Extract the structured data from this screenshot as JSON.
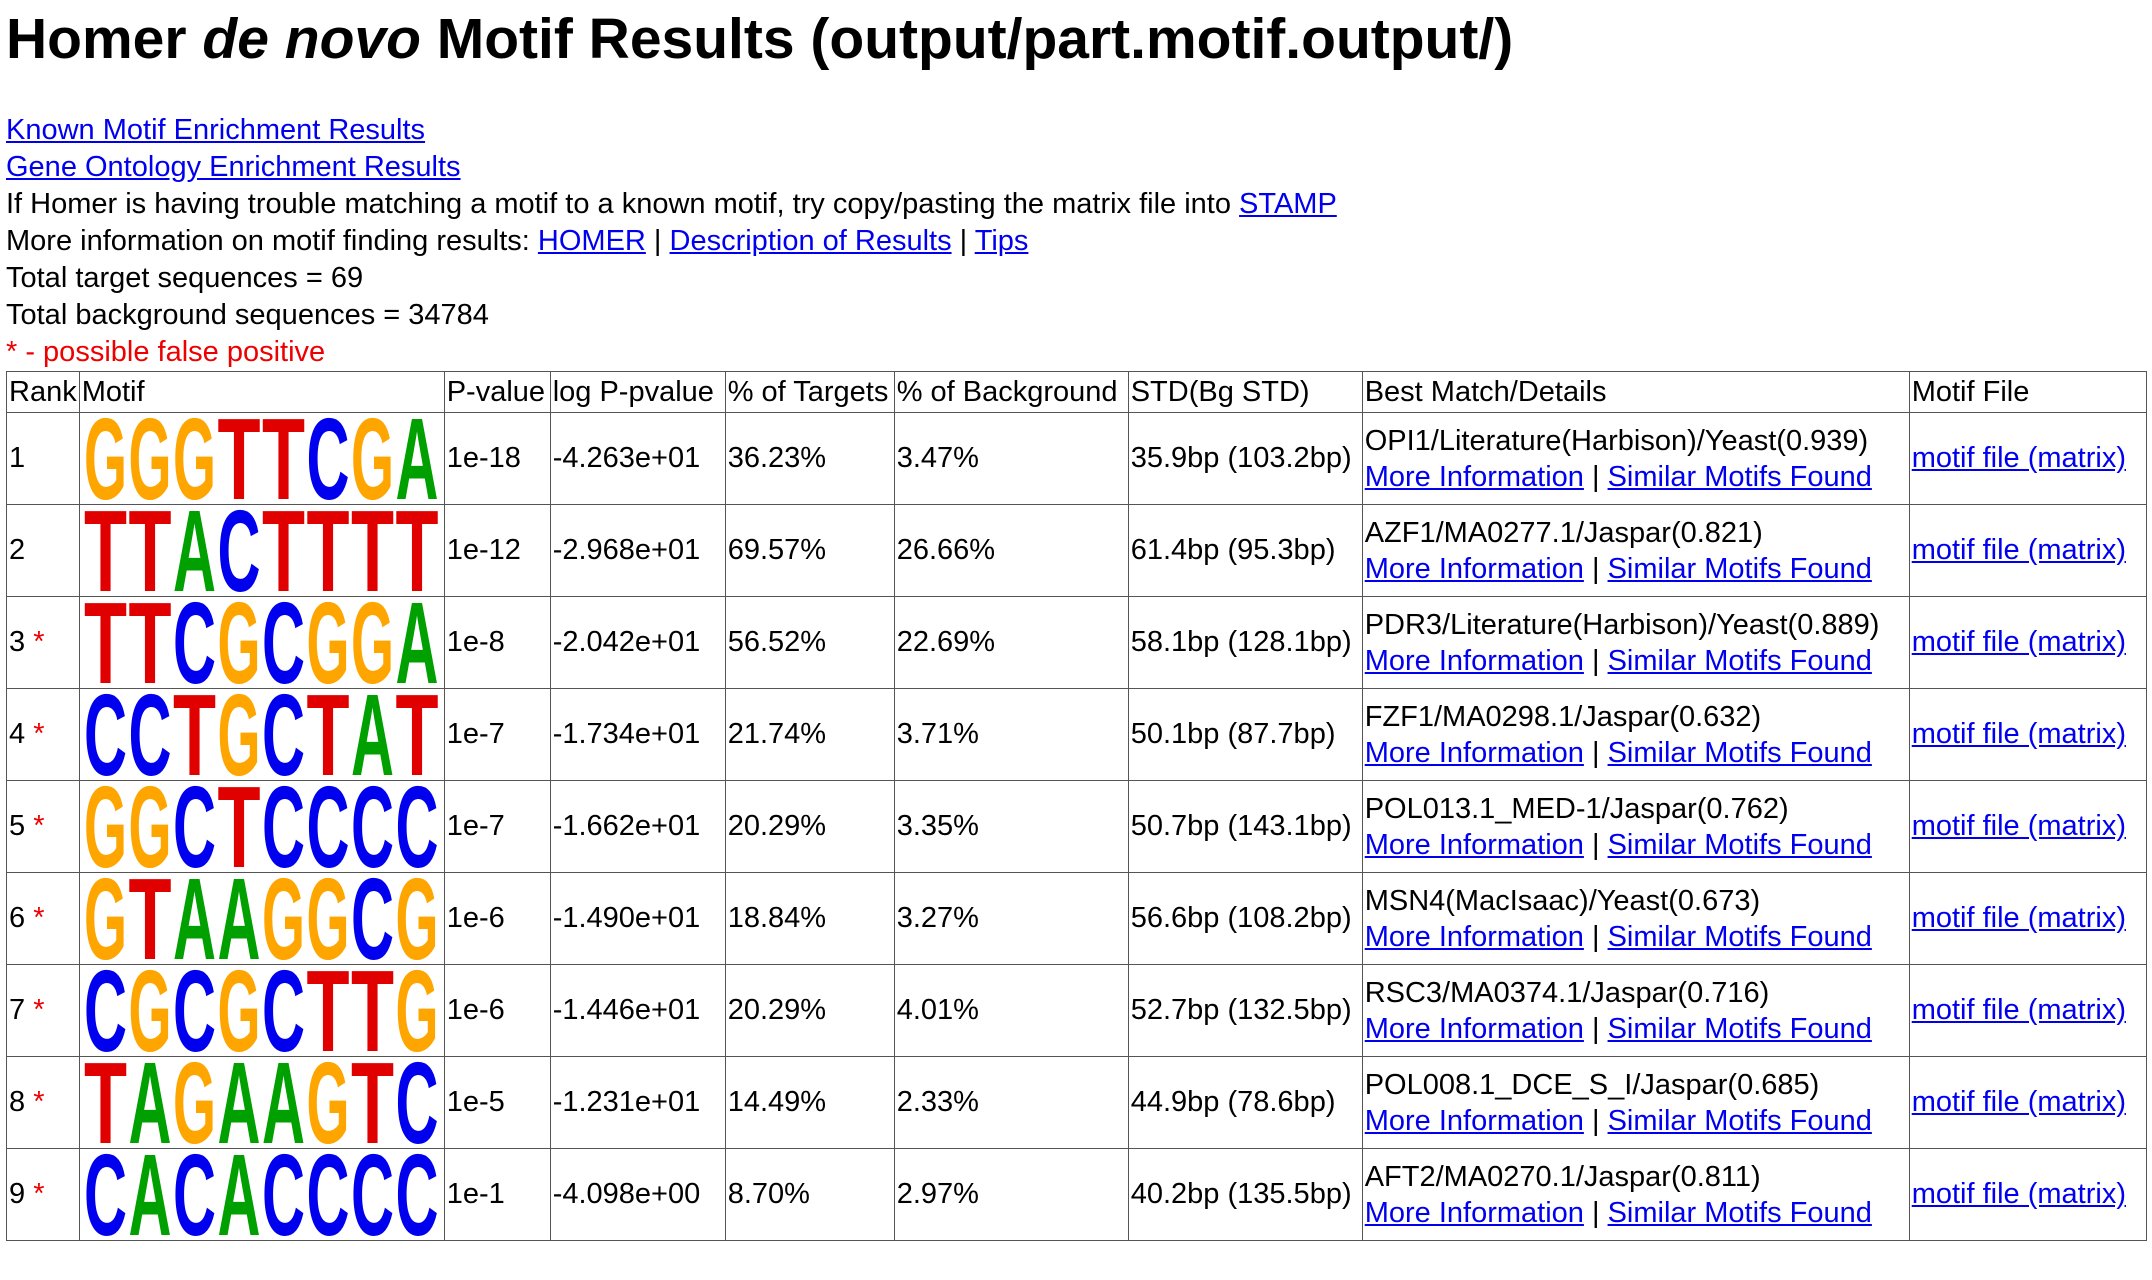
{
  "header": {
    "title": [
      "Homer ",
      "de novo",
      " Motif Results (output/part.motif.output/)"
    ]
  },
  "links": [
    "Known Motif Enrichment Results",
    "Gene Ontology Enrichment Results"
  ],
  "info": {
    "stamp_text": "If Homer is having trouble matching a motif to a known motif, try copy/pasting the matrix file into ",
    "stamp_link": "STAMP",
    "more_text": "More information on motif finding results: ",
    "more_links": [
      "HOMER",
      "Description of Results",
      "Tips"
    ],
    "separator": " | ",
    "targets": "Total target sequences = 69",
    "background": "Total background sequences = 34784",
    "false_positive": "* - possible false positive"
  },
  "table": {
    "columns": [
      "Rank",
      "Motif",
      "P-value",
      "log P-pvalue",
      "% of Targets",
      "% of Background",
      "STD(Bg STD)",
      "Best Match/Details",
      "Motif File"
    ],
    "more_info": "More Information",
    "similar": "Similar Motifs Found",
    "motif_file": "motif file (matrix)",
    "rows": [
      {
        "rank": "1",
        "flag": null,
        "motif": [
          "G",
          "G",
          "G",
          "T",
          "T",
          "C",
          "G",
          "A"
        ],
        "pvalue": "1e-18",
        "logp": "-4.263e+01",
        "targets": "36.23%",
        "background": "3.47%",
        "std": "35.9bp (103.2bp)",
        "match": "OPI1/Literature(Harbison)/Yeast(0.939)"
      },
      {
        "rank": "2",
        "flag": null,
        "motif": [
          "T",
          "T",
          "A",
          "C",
          "T",
          "T",
          "T",
          "T"
        ],
        "pvalue": "1e-12",
        "logp": "-2.968e+01",
        "targets": "69.57%",
        "background": "26.66%",
        "std": "61.4bp (95.3bp)",
        "match": "AZF1/MA0277.1/Jaspar(0.821)"
      },
      {
        "rank": "3",
        "flag": "*",
        "motif": [
          "T",
          "T",
          "C",
          "G",
          "C",
          "G",
          "G",
          "A"
        ],
        "pvalue": "1e-8",
        "logp": "-2.042e+01",
        "targets": "56.52%",
        "background": "22.69%",
        "std": "58.1bp (128.1bp)",
        "match": "PDR3/Literature(Harbison)/Yeast(0.889)"
      },
      {
        "rank": "4",
        "flag": "*",
        "motif": [
          "C",
          "C",
          "T",
          "G",
          "C",
          "T",
          "A",
          "T"
        ],
        "pvalue": "1e-7",
        "logp": "-1.734e+01",
        "targets": "21.74%",
        "background": "3.71%",
        "std": "50.1bp (87.7bp)",
        "match": "FZF1/MA0298.1/Jaspar(0.632)"
      },
      {
        "rank": "5",
        "flag": "*",
        "motif": [
          "G",
          "G",
          "C",
          "T",
          "C",
          "C",
          "C",
          "C"
        ],
        "pvalue": "1e-7",
        "logp": "-1.662e+01",
        "targets": "20.29%",
        "background": "3.35%",
        "std": "50.7bp (143.1bp)",
        "match": "POL013.1_MED-1/Jaspar(0.762)"
      },
      {
        "rank": "6",
        "flag": "*",
        "motif": [
          "G",
          "T",
          "A",
          "A",
          "G",
          "G",
          "C",
          "G"
        ],
        "pvalue": "1e-6",
        "logp": "-1.490e+01",
        "targets": "18.84%",
        "background": "3.27%",
        "std": "56.6bp (108.2bp)",
        "match": "MSN4(MacIsaac)/Yeast(0.673)"
      },
      {
        "rank": "7",
        "flag": "*",
        "motif": [
          "C",
          "G",
          "C",
          "G",
          "C",
          "T",
          "T",
          "G"
        ],
        "pvalue": "1e-6",
        "logp": "-1.446e+01",
        "targets": "20.29%",
        "background": "4.01%",
        "std": "52.7bp (132.5bp)",
        "match": "RSC3/MA0374.1/Jaspar(0.716)"
      },
      {
        "rank": "8",
        "flag": "*",
        "motif": [
          "T",
          "A",
          "G",
          "A",
          "A",
          "G",
          "T",
          "C"
        ],
        "pvalue": "1e-5",
        "logp": "-1.231e+01",
        "targets": "14.49%",
        "background": "2.33%",
        "std": "44.9bp (78.6bp)",
        "match": "POL008.1_DCE_S_I/Jaspar(0.685)"
      },
      {
        "rank": "9",
        "flag": "*",
        "motif": [
          "C",
          "A",
          "C",
          "A",
          "C",
          "C",
          "C",
          "C"
        ],
        "pvalue": "1e-1",
        "logp": "-4.098e+00",
        "targets": "8.70%",
        "background": "2.97%",
        "std": "40.2bp (135.5bp)",
        "match": "AFT2/MA0270.1/Jaspar(0.811)"
      }
    ]
  }
}
